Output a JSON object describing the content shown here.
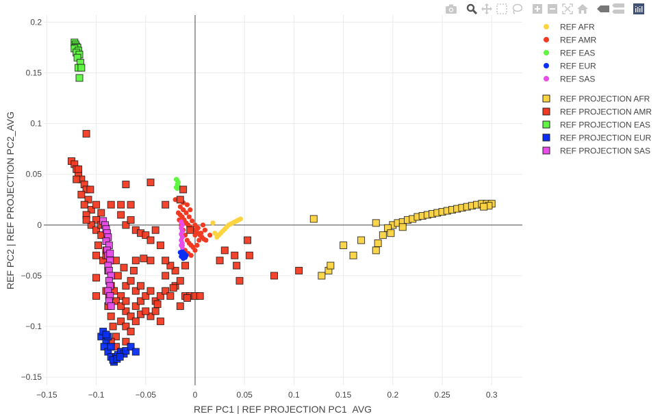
{
  "colors": {
    "AFR": "#FCD440",
    "AMR": "#F23A22",
    "EAS": "#5FF542",
    "EUR": "#0A2EF5",
    "SAS": "#E94CE9"
  },
  "modebar": {
    "icons": [
      "camera-icon",
      "zoom-icon",
      "pan-icon",
      "box-select-icon",
      "lasso-icon",
      "zoom-in-icon",
      "zoom-out-icon",
      "autoscale-icon",
      "home-icon",
      "hover-closest-icon",
      "hover-compare-icon",
      "plotly-logo-icon"
    ],
    "active": "zoom-icon"
  },
  "chart_data": {
    "type": "scatter",
    "title": "",
    "xlabel": "REF PC1 | REF PROJECTION PC1_AVG",
    "ylabel": "REF PC2 | REF PROJECTION PC2_AVG",
    "xlim": [
      -0.153,
      0.331
    ],
    "ylim": [
      -0.158,
      0.207
    ],
    "xticks": [
      -0.15,
      -0.1,
      -0.05,
      0,
      0.05,
      0.1,
      0.15,
      0.2,
      0.25,
      0.3
    ],
    "xtick_labels": [
      "−0.15",
      "−0.1",
      "−0.05",
      "0",
      "0.05",
      "0.1",
      "0.15",
      "0.2",
      "0.25",
      "0.3"
    ],
    "yticks": [
      -0.15,
      -0.1,
      -0.05,
      0,
      0.05,
      0.1,
      0.15,
      0.2
    ],
    "ytick_labels": [
      "−0.15",
      "−0.1",
      "−0.05",
      "0",
      "0.05",
      "0.1",
      "0.15",
      "0.2"
    ],
    "grid": true,
    "legend_position": "right",
    "series": [
      {
        "name": "REF AFR",
        "group": "AFR",
        "marker": "circle",
        "x": [
          0.018,
          0.022,
          0.024,
          0.026,
          0.028,
          0.03,
          0.032,
          0.034,
          0.036,
          0.038,
          0.04,
          0.042,
          0.044,
          0.046,
          0.02
        ],
        "y": [
          0.002,
          -0.012,
          -0.01,
          -0.008,
          -0.006,
          -0.004,
          -0.002,
          0.0,
          0.001,
          0.002,
          0.003,
          0.004,
          0.005,
          0.006,
          -0.008
        ]
      },
      {
        "name": "REF AMR",
        "group": "AMR",
        "marker": "circle",
        "x": [
          -0.017,
          -0.015,
          -0.013,
          -0.011,
          -0.009,
          -0.007,
          -0.005,
          -0.003,
          -0.001,
          0.001,
          0.003,
          0.005,
          0.007,
          0.009,
          0.011,
          -0.016,
          -0.014,
          -0.012,
          -0.01,
          -0.008,
          -0.006,
          -0.004,
          -0.002,
          0.0,
          0.002,
          0.004,
          0.006,
          -0.015,
          -0.012,
          -0.009,
          -0.006,
          -0.003,
          0.0,
          0.003,
          -0.013,
          -0.01,
          -0.007,
          -0.004,
          -0.02,
          -0.008,
          0.0,
          0.01,
          0.015,
          0.008,
          -0.005,
          -0.012
        ],
        "y": [
          0.012,
          0.01,
          0.008,
          0.005,
          0.002,
          0.0,
          -0.002,
          -0.004,
          -0.005,
          -0.006,
          -0.008,
          -0.01,
          -0.012,
          -0.014,
          -0.015,
          0.005,
          0.0,
          -0.005,
          -0.01,
          -0.015,
          -0.018,
          -0.02,
          -0.022,
          -0.025,
          -0.02,
          -0.015,
          -0.008,
          0.018,
          0.015,
          0.012,
          0.008,
          0.004,
          0.0,
          -0.003,
          -0.02,
          -0.025,
          -0.028,
          -0.03,
          0.025,
          0.02,
          -0.01,
          -0.005,
          -0.01,
          0.0,
          0.015,
          0.022
        ]
      },
      {
        "name": "REF EAS",
        "group": "EAS",
        "marker": "circle",
        "x": [
          -0.019,
          -0.018,
          -0.017,
          -0.018,
          -0.017,
          -0.019,
          -0.018
        ],
        "y": [
          0.045,
          0.044,
          0.042,
          0.04,
          0.038,
          0.037,
          0.036
        ]
      },
      {
        "name": "REF EUR",
        "group": "EUR",
        "marker": "circle",
        "x": [
          -0.015,
          -0.013,
          -0.011,
          -0.009,
          -0.014,
          -0.012,
          -0.01,
          -0.013
        ],
        "y": [
          -0.027,
          -0.026,
          -0.028,
          -0.03,
          -0.031,
          -0.033,
          -0.032,
          -0.029
        ]
      },
      {
        "name": "REF SAS",
        "group": "SAS",
        "marker": "circle",
        "x": [
          -0.014,
          -0.013,
          -0.014,
          -0.013,
          -0.014,
          -0.013,
          -0.014,
          -0.013,
          -0.014,
          -0.013
        ],
        "y": [
          0.003,
          0.0,
          -0.003,
          -0.006,
          -0.009,
          -0.012,
          -0.015,
          -0.018,
          -0.02,
          -0.022
        ]
      },
      {
        "name": "REF PROJECTION AFR",
        "group": "AFR",
        "marker": "square",
        "x": [
          0.2,
          0.205,
          0.21,
          0.215,
          0.22,
          0.225,
          0.23,
          0.235,
          0.24,
          0.245,
          0.25,
          0.255,
          0.26,
          0.265,
          0.27,
          0.275,
          0.28,
          0.285,
          0.29,
          0.295,
          0.3,
          0.297,
          0.292,
          0.21,
          0.195,
          0.198,
          0.19,
          0.183,
          0.168,
          0.16,
          0.15,
          0.135,
          0.128,
          0.12,
          0.183,
          0.185,
          0.137
        ],
        "y": [
          0.0,
          0.002,
          0.003,
          0.005,
          0.006,
          0.008,
          0.009,
          0.01,
          0.011,
          0.012,
          0.013,
          0.014,
          0.015,
          0.016,
          0.017,
          0.018,
          0.019,
          0.02,
          0.021,
          0.021,
          0.021,
          0.019,
          0.018,
          -0.002,
          -0.003,
          -0.008,
          -0.01,
          -0.025,
          -0.015,
          -0.03,
          -0.02,
          -0.045,
          -0.05,
          0.006,
          0.002,
          -0.018,
          -0.04
        ]
      },
      {
        "name": "REF PROJECTION AMR",
        "group": "AMR",
        "marker": "square",
        "x": [
          -0.125,
          -0.122,
          -0.12,
          -0.118,
          -0.115,
          -0.112,
          -0.12,
          -0.11,
          -0.115,
          -0.108,
          -0.112,
          -0.105,
          -0.11,
          -0.1,
          -0.105,
          -0.1,
          -0.095,
          -0.098,
          -0.09,
          -0.093,
          -0.1,
          -0.088,
          -0.1,
          -0.085,
          -0.09,
          -0.087,
          -0.088,
          -0.085,
          -0.083,
          -0.08,
          -0.075,
          -0.07,
          -0.065,
          -0.06,
          -0.055,
          -0.05,
          -0.045,
          -0.04,
          -0.035,
          -0.03,
          -0.025,
          -0.02,
          -0.015,
          -0.01,
          -0.005,
          0.0,
          0.005,
          -0.02,
          -0.03,
          -0.025,
          -0.075,
          -0.07,
          -0.065,
          -0.06,
          -0.055,
          -0.08,
          -0.075,
          -0.07,
          -0.065,
          -0.06,
          -0.055,
          -0.07,
          -0.082,
          -0.078,
          -0.072,
          -0.06,
          -0.052,
          -0.045,
          -0.03,
          -0.08,
          -0.075,
          -0.07,
          -0.065,
          -0.06,
          -0.055,
          -0.05,
          -0.045,
          -0.085,
          -0.075,
          -0.065,
          -0.11,
          -0.07,
          -0.045,
          -0.03,
          -0.015,
          -0.012,
          -0.04,
          -0.035,
          0.03,
          0.04,
          0.045,
          0.042,
          0.053,
          0.055,
          0.025,
          0.08,
          0.105,
          -0.09,
          -0.1,
          -0.11,
          -0.1,
          -0.095,
          -0.08,
          -0.075,
          -0.085,
          -0.07,
          -0.045,
          -0.04,
          -0.035,
          -0.015,
          -0.01,
          -0.005,
          -0.118,
          -0.106,
          -0.095,
          -0.062,
          -0.05,
          -0.038,
          -0.022,
          -0.008
        ],
        "y": [
          0.063,
          0.06,
          0.055,
          0.05,
          0.045,
          0.04,
          0.045,
          0.035,
          0.03,
          0.025,
          0.02,
          0.015,
          0.01,
          0.005,
          0.0,
          -0.005,
          -0.01,
          -0.02,
          -0.025,
          -0.035,
          -0.03,
          -0.045,
          -0.052,
          -0.06,
          -0.065,
          -0.07,
          -0.08,
          -0.09,
          -0.1,
          -0.11,
          -0.095,
          -0.085,
          -0.09,
          -0.08,
          -0.075,
          -0.07,
          -0.065,
          -0.075,
          -0.07,
          -0.065,
          -0.07,
          -0.06,
          -0.055,
          -0.07,
          -0.07,
          -0.07,
          -0.07,
          -0.045,
          -0.05,
          -0.04,
          -0.07,
          -0.06,
          -0.055,
          -0.065,
          -0.06,
          -0.075,
          -0.08,
          -0.1,
          -0.105,
          -0.095,
          -0.088,
          -0.075,
          -0.065,
          -0.05,
          -0.042,
          -0.035,
          -0.033,
          -0.035,
          -0.035,
          -0.035,
          0.01,
          0.0,
          0.005,
          -0.005,
          -0.008,
          -0.01,
          -0.015,
          0.02,
          0.02,
          0.02,
          0.09,
          0.04,
          0.042,
          0.02,
          0.025,
          0.035,
          -0.005,
          -0.02,
          -0.025,
          -0.03,
          -0.055,
          -0.04,
          -0.015,
          -0.03,
          -0.035,
          -0.05,
          -0.045,
          -0.03,
          -0.07,
          0.005,
          0.02,
          0.0,
          -0.12,
          -0.125,
          -0.115,
          -0.115,
          -0.09,
          -0.085,
          -0.095,
          -0.08,
          -0.04,
          -0.005,
          0.055,
          0.035,
          0.012,
          -0.045,
          -0.085,
          -0.078,
          -0.062,
          -0.072
        ]
      },
      {
        "name": "REF PROJECTION EAS",
        "group": "EAS",
        "marker": "square",
        "x": [
          -0.122,
          -0.121,
          -0.12,
          -0.119,
          -0.122,
          -0.118,
          -0.12,
          -0.117,
          -0.119,
          -0.116,
          -0.118,
          -0.115,
          -0.117
        ],
        "y": [
          0.18,
          0.178,
          0.176,
          0.175,
          0.174,
          0.172,
          0.17,
          0.168,
          0.165,
          0.16,
          0.155,
          0.155,
          0.145
        ]
      },
      {
        "name": "REF PROJECTION EUR",
        "group": "EUR",
        "marker": "square",
        "x": [
          -0.095,
          -0.093,
          -0.09,
          -0.092,
          -0.088,
          -0.085,
          -0.082,
          -0.08,
          -0.078,
          -0.075,
          -0.072,
          -0.07,
          -0.065,
          -0.06,
          -0.088,
          -0.09,
          -0.085,
          -0.083,
          -0.079,
          -0.076
        ],
        "y": [
          -0.11,
          -0.105,
          -0.115,
          -0.12,
          -0.125,
          -0.13,
          -0.135,
          -0.13,
          -0.128,
          -0.125,
          -0.127,
          -0.124,
          -0.12,
          -0.125,
          -0.11,
          -0.108,
          -0.12,
          -0.133,
          -0.132,
          -0.13
        ]
      },
      {
        "name": "REF PROJECTION SAS",
        "group": "SAS",
        "marker": "square",
        "x": [
          -0.093,
          -0.091,
          -0.09,
          -0.089,
          -0.088,
          -0.09,
          -0.087,
          -0.089,
          -0.088,
          -0.086,
          -0.088,
          -0.087,
          -0.085,
          -0.087,
          -0.086,
          -0.088,
          -0.086,
          -0.087,
          -0.085,
          -0.086
        ],
        "y": [
          0.004,
          0.0,
          -0.004,
          -0.008,
          -0.012,
          -0.016,
          -0.02,
          -0.025,
          -0.03,
          -0.035,
          -0.04,
          -0.045,
          -0.05,
          -0.055,
          -0.06,
          -0.065,
          -0.07,
          -0.075,
          -0.08,
          -0.028
        ]
      }
    ]
  }
}
